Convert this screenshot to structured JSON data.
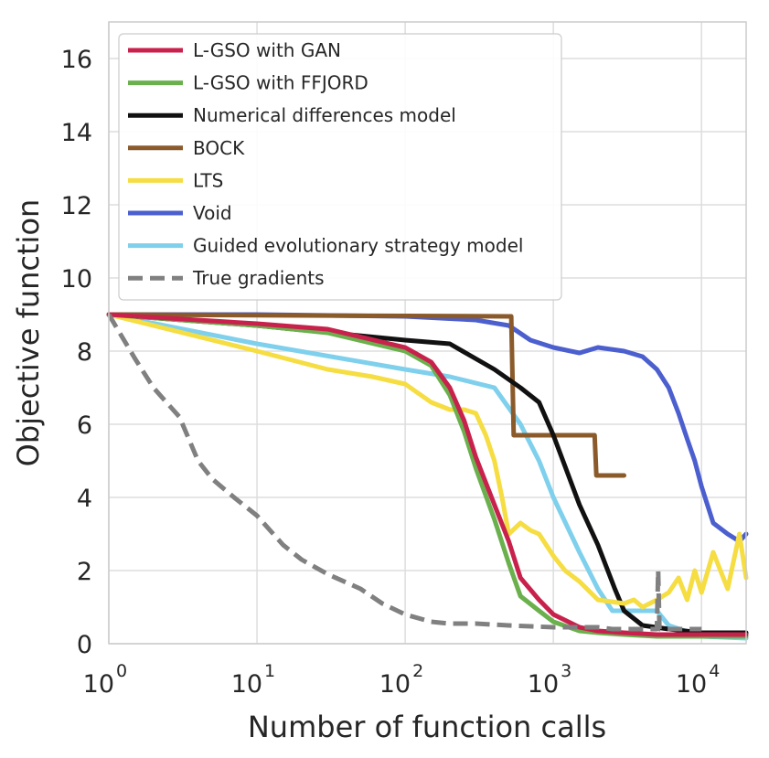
{
  "chart_data": {
    "type": "line",
    "title": "",
    "xlabel": "Number of function calls",
    "ylabel": "Objective function",
    "xscale": "log",
    "xlim": [
      1,
      20000
    ],
    "ylim": [
      0,
      17
    ],
    "grid": true,
    "legend_position": "top-left",
    "x_ticks": [
      {
        "value": 1,
        "base": "10",
        "exp": "0"
      },
      {
        "value": 10,
        "base": "10",
        "exp": "1"
      },
      {
        "value": 100,
        "base": "10",
        "exp": "2"
      },
      {
        "value": 1000,
        "base": "10",
        "exp": "3"
      },
      {
        "value": 10000,
        "base": "10",
        "exp": "4"
      }
    ],
    "y_ticks": [
      {
        "value": 0,
        "label": "0"
      },
      {
        "value": 2,
        "label": "2"
      },
      {
        "value": 4,
        "label": "4"
      },
      {
        "value": 6,
        "label": "6"
      },
      {
        "value": 8,
        "label": "8"
      },
      {
        "value": 10,
        "label": "10"
      },
      {
        "value": 12,
        "label": "12"
      },
      {
        "value": 14,
        "label": "14"
      },
      {
        "value": 16,
        "label": "16"
      }
    ],
    "series": [
      {
        "name": "Void",
        "color": "#4c5fcf",
        "dash": "solid",
        "x": [
          1,
          10,
          100,
          300,
          500,
          700,
          1000,
          1500,
          2000,
          3000,
          4000,
          5000,
          6000,
          7000,
          8000,
          9000,
          10000,
          12000,
          15000,
          18000,
          20000
        ],
        "y": [
          9.0,
          9.0,
          8.95,
          8.85,
          8.7,
          8.3,
          8.1,
          7.95,
          8.1,
          8.0,
          7.85,
          7.5,
          7.0,
          6.3,
          5.6,
          5.0,
          4.3,
          3.3,
          3.0,
          2.8,
          3.0
        ]
      },
      {
        "name": "Guided evolutionary strategy model",
        "color": "#7fd0ec",
        "dash": "solid",
        "x": [
          1,
          10,
          100,
          200,
          400,
          600,
          800,
          1000,
          1500,
          2000,
          2500,
          3000,
          5000,
          6000,
          10000,
          20000
        ],
        "y": [
          9.0,
          8.2,
          7.5,
          7.3,
          7.0,
          6.0,
          5.0,
          4.0,
          2.5,
          1.5,
          0.9,
          0.9,
          0.9,
          0.5,
          0.2,
          0.15
        ]
      },
      {
        "name": "BOCK",
        "color": "#8b5a2b",
        "dash": "solid",
        "x": [
          1,
          500,
          520,
          540,
          1900,
          1950,
          2000,
          3000
        ],
        "y": [
          9.0,
          8.95,
          8.95,
          5.7,
          5.7,
          4.6,
          4.6,
          4.6
        ]
      },
      {
        "name": "Numerical differences model",
        "color": "#111111",
        "dash": "solid",
        "x": [
          1,
          10,
          100,
          200,
          400,
          600,
          800,
          1000,
          1500,
          2000,
          2600,
          3000,
          4000,
          6000,
          10000,
          20000
        ],
        "y": [
          9.0,
          8.7,
          8.3,
          8.2,
          7.5,
          7.0,
          6.6,
          5.7,
          3.8,
          2.7,
          1.5,
          0.9,
          0.5,
          0.4,
          0.3,
          0.3
        ]
      },
      {
        "name": "LTS",
        "color": "#f5dd42",
        "dash": "solid",
        "x": [
          1,
          10,
          30,
          60,
          100,
          150,
          200,
          250,
          300,
          350,
          400,
          450,
          500,
          600,
          700,
          800,
          1000,
          1200,
          1500,
          2000,
          3000,
          3500,
          4000,
          5000,
          6000,
          7000,
          8000,
          9000,
          10000,
          12000,
          15000,
          18000,
          20000
        ],
        "y": [
          9.0,
          8.0,
          7.5,
          7.3,
          7.1,
          6.6,
          6.4,
          6.4,
          6.3,
          5.7,
          5.0,
          4.0,
          3.0,
          3.3,
          3.1,
          3.0,
          2.4,
          2.0,
          1.7,
          1.2,
          1.1,
          1.2,
          1.0,
          1.2,
          1.4,
          1.8,
          1.2,
          2.0,
          1.4,
          2.5,
          1.5,
          3.0,
          1.8
        ]
      },
      {
        "name": "L-GSO with FFJORD",
        "color": "#6ab04c",
        "dash": "solid",
        "x": [
          1,
          10,
          30,
          100,
          150,
          200,
          250,
          300,
          400,
          500,
          600,
          800,
          1000,
          1500,
          2000,
          3000,
          5000,
          10000,
          20000
        ],
        "y": [
          9.0,
          8.7,
          8.5,
          8.0,
          7.6,
          6.8,
          5.8,
          4.8,
          3.4,
          2.2,
          1.3,
          0.9,
          0.6,
          0.35,
          0.3,
          0.25,
          0.2,
          0.2,
          0.2
        ]
      },
      {
        "name": "L-GSO with GAN",
        "color": "#c8224c",
        "dash": "solid",
        "x": [
          1,
          10,
          30,
          100,
          150,
          200,
          250,
          300,
          400,
          500,
          600,
          800,
          1000,
          1500,
          2000,
          3000,
          5000,
          10000,
          20000
        ],
        "y": [
          9.0,
          8.75,
          8.6,
          8.1,
          7.7,
          7.0,
          6.1,
          5.1,
          3.8,
          2.8,
          1.8,
          1.2,
          0.8,
          0.45,
          0.35,
          0.3,
          0.25,
          0.25,
          0.25
        ]
      },
      {
        "name": "True gradients",
        "color": "#808080",
        "dash": "dashed",
        "x": [
          1,
          1.5,
          2,
          3,
          4,
          5,
          7,
          10,
          15,
          20,
          30,
          50,
          70,
          100,
          150,
          200,
          300,
          500,
          1000,
          1500,
          2000,
          2500,
          3000,
          4000,
          5000,
          5100,
          5200,
          6000,
          10000
        ],
        "y": [
          9.0,
          7.8,
          7.0,
          6.2,
          5.0,
          4.5,
          4.0,
          3.5,
          2.7,
          2.3,
          1.9,
          1.5,
          1.1,
          0.8,
          0.6,
          0.55,
          0.55,
          0.5,
          0.45,
          0.45,
          0.45,
          0.4,
          0.4,
          0.4,
          0.4,
          2.0,
          0.4,
          0.4,
          0.4
        ]
      }
    ],
    "legend": [
      {
        "label": "L-GSO with GAN",
        "color": "#c8224c",
        "dash": "solid"
      },
      {
        "label": "L-GSO with FFJORD",
        "color": "#6ab04c",
        "dash": "solid"
      },
      {
        "label": "Numerical differences model",
        "color": "#111111",
        "dash": "solid"
      },
      {
        "label": "BOCK",
        "color": "#8b5a2b",
        "dash": "solid"
      },
      {
        "label": "LTS",
        "color": "#f5dd42",
        "dash": "solid"
      },
      {
        "label": "Void",
        "color": "#4c5fcf",
        "dash": "solid"
      },
      {
        "label": "Guided evolutionary strategy model",
        "color": "#7fd0ec",
        "dash": "solid"
      },
      {
        "label": "True gradients",
        "color": "#808080",
        "dash": "dashed"
      }
    ]
  }
}
